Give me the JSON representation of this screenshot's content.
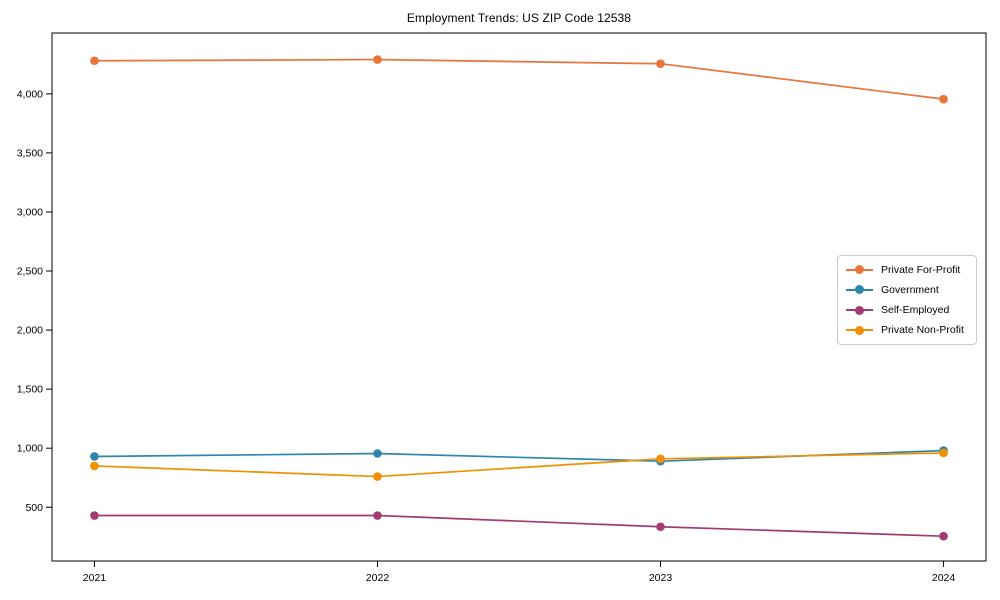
{
  "chart_data": {
    "type": "line",
    "title": "Employment Trends: US ZIP Code 12538",
    "xlabel": "",
    "ylabel": "",
    "x_categories": [
      "2021",
      "2022",
      "2023",
      "2024"
    ],
    "x_values": [
      2021,
      2022,
      2023,
      2024
    ],
    "series": [
      {
        "name": "Private For-Profit",
        "color": "#e8743b",
        "values": [
          4280,
          4290,
          4255,
          3955
        ]
      },
      {
        "name": "Government",
        "color": "#2e86ab",
        "values": [
          930,
          955,
          890,
          980
        ]
      },
      {
        "name": "Self-Employed",
        "color": "#a23b72",
        "values": [
          430,
          430,
          335,
          255
        ]
      },
      {
        "name": "Private Non-Profit",
        "color": "#f18f01",
        "values": [
          850,
          760,
          910,
          960
        ]
      }
    ],
    "y_ticks": [
      {
        "value": 500,
        "label": "500"
      },
      {
        "value": 1000,
        "label": "1,000"
      },
      {
        "value": 1500,
        "label": "1,500"
      },
      {
        "value": 2000,
        "label": "2,000"
      },
      {
        "value": 2500,
        "label": "2,500"
      },
      {
        "value": 3000,
        "label": "3,000"
      },
      {
        "value": 3500,
        "label": "3,500"
      },
      {
        "value": 4000,
        "label": "4,000"
      }
    ],
    "xlim": [
      2020.85,
      2024.15
    ],
    "ylim": [
      45,
      4515
    ],
    "grid": false,
    "legend_position": "center-right",
    "marker": "circle",
    "axis_color": "#000000",
    "legend_border_color": "#cccccc"
  }
}
